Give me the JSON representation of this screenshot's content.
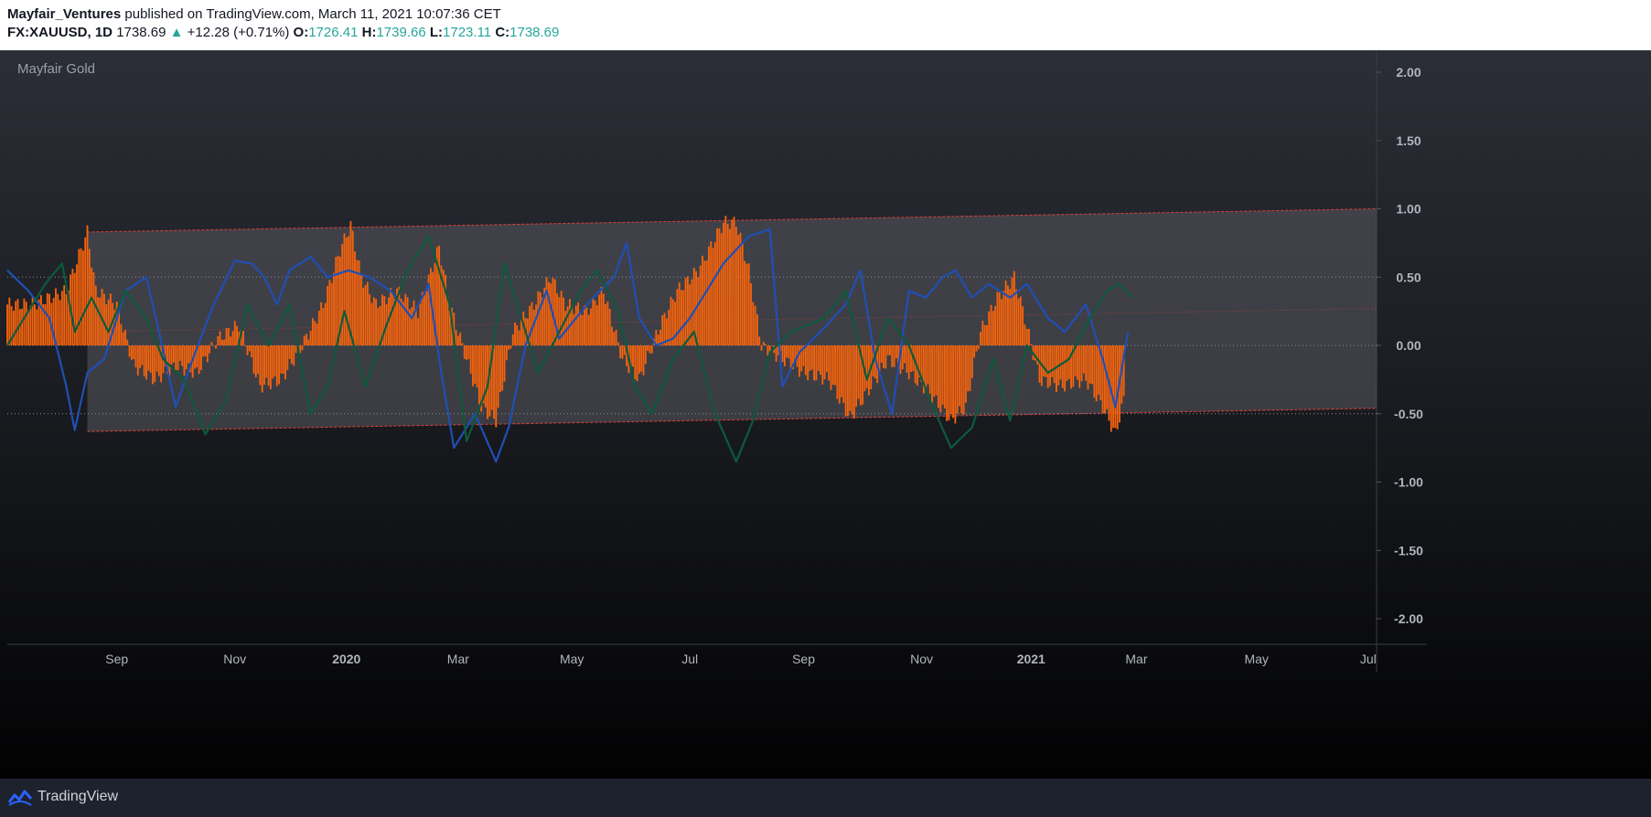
{
  "header": {
    "author": "Mayfair_Ventures",
    "published_text": " published on TradingView.com, March 11, 2021 10:07:36 CET",
    "symbol": "FX:XAUUSD, 1D",
    "price": "1738.69",
    "change_arrow": "▲",
    "change": "+12.28 (+0.71%)",
    "open_label": "O:",
    "open": "1726.41",
    "high_label": "H:",
    "high": "1739.66",
    "low_label": "L:",
    "low": "1723.11",
    "close_label": "C:",
    "close": "1738.69"
  },
  "indicator_title": "Mayfair Gold",
  "footer": {
    "brand": "TradingView"
  },
  "colors": {
    "histogram": "#f7630c",
    "blue_line": "#1f4fb5",
    "green_line": "#0c5a3c",
    "channel_border": "#e0403a",
    "channel_fill": "#5a5a60",
    "price_up": "#26a69a"
  },
  "chart_data": {
    "type": "bar",
    "title": "Mayfair Gold",
    "ylim": [
      -2.2,
      2.2
    ],
    "y_ticks": [
      "2.00",
      "1.50",
      "1.00",
      "0.50",
      "0.00",
      "-0.50",
      "-1.00",
      "-1.50",
      "-2.00"
    ],
    "y_tick_values": [
      2.0,
      1.5,
      1.0,
      0.5,
      0.0,
      -0.5,
      -1.0,
      -1.5,
      -2.0
    ],
    "x_ticks": [
      "Sep",
      "Nov",
      "2020",
      "Mar",
      "May",
      "Jul",
      "Sep",
      "Nov",
      "2021",
      "Mar",
      "May",
      "Jul"
    ],
    "x_tick_bold": [
      false,
      false,
      true,
      false,
      false,
      false,
      false,
      false,
      true,
      false,
      false,
      false
    ],
    "x_tick_index": [
      52,
      108,
      161,
      214,
      268,
      324,
      378,
      434,
      486,
      536,
      593,
      646
    ],
    "x_range": [
      0,
      650
    ],
    "reference_lines": [
      0.5,
      0.0,
      -0.5
    ],
    "channel": {
      "start_index": 38,
      "end_index": 650,
      "upper": [
        0.83,
        1.0
      ],
      "lower": [
        -0.63,
        -0.46
      ],
      "mid": [
        0.1,
        0.27
      ]
    },
    "histogram_keypoints": [
      [
        0,
        0.3
      ],
      [
        12,
        0.3
      ],
      [
        28,
        0.4
      ],
      [
        38,
        0.83
      ],
      [
        42,
        0.4
      ],
      [
        52,
        0.3
      ],
      [
        60,
        -0.15
      ],
      [
        70,
        -0.25
      ],
      [
        80,
        -0.15
      ],
      [
        90,
        -0.2
      ],
      [
        100,
        0.05
      ],
      [
        110,
        0.15
      ],
      [
        120,
        -0.3
      ],
      [
        130,
        -0.25
      ],
      [
        140,
        0.0
      ],
      [
        150,
        0.3
      ],
      [
        158,
        0.7
      ],
      [
        163,
        0.88
      ],
      [
        168,
        0.5
      ],
      [
        175,
        0.3
      ],
      [
        185,
        0.4
      ],
      [
        195,
        0.25
      ],
      [
        205,
        0.72
      ],
      [
        210,
        0.3
      ],
      [
        218,
        -0.1
      ],
      [
        225,
        -0.45
      ],
      [
        232,
        -0.55
      ],
      [
        240,
        0.1
      ],
      [
        250,
        0.3
      ],
      [
        258,
        0.5
      ],
      [
        265,
        0.3
      ],
      [
        275,
        0.25
      ],
      [
        283,
        0.4
      ],
      [
        292,
        -0.1
      ],
      [
        300,
        -0.25
      ],
      [
        310,
        0.15
      ],
      [
        318,
        0.4
      ],
      [
        328,
        0.55
      ],
      [
        340,
        0.9
      ],
      [
        346,
        0.9
      ],
      [
        352,
        0.55
      ],
      [
        358,
        0.0
      ],
      [
        368,
        -0.1
      ],
      [
        378,
        -0.2
      ],
      [
        390,
        -0.25
      ],
      [
        400,
        -0.53
      ],
      [
        410,
        -0.3
      ],
      [
        418,
        -0.1
      ],
      [
        428,
        -0.2
      ],
      [
        438,
        -0.35
      ],
      [
        448,
        -0.55
      ],
      [
        455,
        -0.45
      ],
      [
        462,
        0.1
      ],
      [
        470,
        0.35
      ],
      [
        478,
        0.5
      ],
      [
        483,
        0.2
      ],
      [
        490,
        -0.25
      ],
      [
        500,
        -0.3
      ],
      [
        512,
        -0.25
      ],
      [
        520,
        -0.45
      ],
      [
        526,
        -0.65
      ],
      [
        530,
        -0.4
      ]
    ],
    "series": [
      {
        "name": "Blue line",
        "keypoints": [
          [
            0,
            0.55
          ],
          [
            10,
            0.4
          ],
          [
            20,
            0.2
          ],
          [
            28,
            -0.3
          ],
          [
            32,
            -0.62
          ],
          [
            38,
            -0.2
          ],
          [
            46,
            -0.1
          ],
          [
            56,
            0.4
          ],
          [
            66,
            0.5
          ],
          [
            72,
            0.1
          ],
          [
            80,
            -0.45
          ],
          [
            88,
            -0.1
          ],
          [
            98,
            0.3
          ],
          [
            108,
            0.62
          ],
          [
            116,
            0.6
          ],
          [
            122,
            0.5
          ],
          [
            128,
            0.3
          ],
          [
            134,
            0.55
          ],
          [
            144,
            0.65
          ],
          [
            152,
            0.5
          ],
          [
            162,
            0.55
          ],
          [
            172,
            0.5
          ],
          [
            182,
            0.4
          ],
          [
            192,
            0.2
          ],
          [
            200,
            0.45
          ],
          [
            206,
            -0.2
          ],
          [
            212,
            -0.75
          ],
          [
            222,
            -0.5
          ],
          [
            232,
            -0.85
          ],
          [
            238,
            -0.6
          ],
          [
            246,
            0.0
          ],
          [
            256,
            0.4
          ],
          [
            262,
            0.05
          ],
          [
            270,
            0.2
          ],
          [
            278,
            0.35
          ],
          [
            288,
            0.5
          ],
          [
            294,
            0.75
          ],
          [
            300,
            0.2
          ],
          [
            308,
            0.0
          ],
          [
            316,
            0.05
          ],
          [
            324,
            0.2
          ],
          [
            330,
            0.35
          ],
          [
            340,
            0.6
          ],
          [
            352,
            0.8
          ],
          [
            362,
            0.85
          ],
          [
            368,
            -0.3
          ],
          [
            376,
            -0.05
          ],
          [
            386,
            0.1
          ],
          [
            398,
            0.3
          ],
          [
            405,
            0.55
          ],
          [
            412,
            -0.1
          ],
          [
            420,
            -0.5
          ],
          [
            428,
            0.4
          ],
          [
            436,
            0.35
          ],
          [
            444,
            0.5
          ],
          [
            450,
            0.55
          ],
          [
            458,
            0.35
          ],
          [
            466,
            0.45
          ],
          [
            476,
            0.35
          ],
          [
            484,
            0.45
          ],
          [
            494,
            0.2
          ],
          [
            502,
            0.1
          ],
          [
            512,
            0.3
          ],
          [
            520,
            -0.1
          ],
          [
            526,
            -0.45
          ],
          [
            532,
            0.1
          ]
        ]
      },
      {
        "name": "Green line",
        "keypoints": [
          [
            0,
            0.0
          ],
          [
            10,
            0.25
          ],
          [
            18,
            0.45
          ],
          [
            26,
            0.6
          ],
          [
            32,
            0.1
          ],
          [
            40,
            0.35
          ],
          [
            48,
            0.1
          ],
          [
            56,
            0.4
          ],
          [
            66,
            0.2
          ],
          [
            74,
            -0.1
          ],
          [
            84,
            -0.25
          ],
          [
            94,
            -0.65
          ],
          [
            104,
            -0.4
          ],
          [
            114,
            0.3
          ],
          [
            124,
            0.0
          ],
          [
            134,
            0.3
          ],
          [
            144,
            -0.5
          ],
          [
            152,
            -0.3
          ],
          [
            160,
            0.25
          ],
          [
            170,
            -0.3
          ],
          [
            180,
            0.15
          ],
          [
            190,
            0.55
          ],
          [
            200,
            0.8
          ],
          [
            210,
            0.3
          ],
          [
            218,
            -0.7
          ],
          [
            228,
            -0.3
          ],
          [
            236,
            0.6
          ],
          [
            244,
            0.2
          ],
          [
            252,
            -0.2
          ],
          [
            262,
            0.1
          ],
          [
            272,
            0.4
          ],
          [
            280,
            0.55
          ],
          [
            290,
            0.25
          ],
          [
            298,
            -0.3
          ],
          [
            306,
            -0.5
          ],
          [
            316,
            -0.1
          ],
          [
            326,
            0.1
          ],
          [
            336,
            -0.5
          ],
          [
            346,
            -0.85
          ],
          [
            354,
            -0.55
          ],
          [
            362,
            -0.05
          ],
          [
            372,
            0.1
          ],
          [
            380,
            0.15
          ],
          [
            388,
            0.2
          ],
          [
            398,
            0.4
          ],
          [
            408,
            -0.25
          ],
          [
            418,
            0.2
          ],
          [
            428,
            0.0
          ],
          [
            438,
            -0.4
          ],
          [
            448,
            -0.75
          ],
          [
            458,
            -0.6
          ],
          [
            468,
            -0.1
          ],
          [
            476,
            -0.55
          ],
          [
            484,
            0.0
          ],
          [
            494,
            -0.2
          ],
          [
            504,
            -0.1
          ],
          [
            514,
            0.2
          ],
          [
            522,
            0.4
          ],
          [
            528,
            0.45
          ],
          [
            534,
            0.35
          ]
        ]
      }
    ]
  }
}
